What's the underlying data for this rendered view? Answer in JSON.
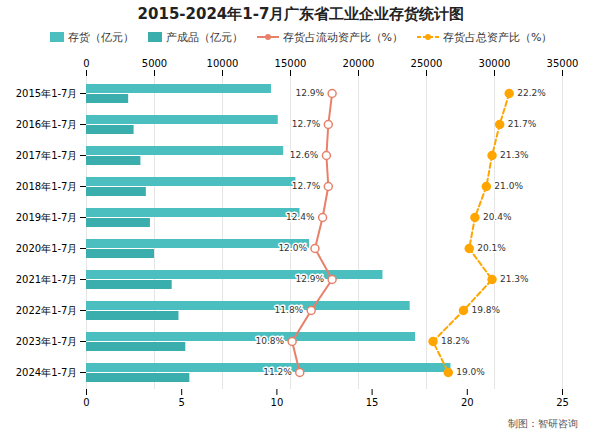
{
  "chart_data": {
    "type": "bar",
    "orientation": "horizontal",
    "title": "2015-2024年1-7月广东省工业企业存货统计图",
    "categories": [
      "2015年1-7月",
      "2016年1-7月",
      "2017年1-7月",
      "2018年1-7月",
      "2019年1-7月",
      "2020年1-7月",
      "2021年1-7月",
      "2022年1-7月",
      "2023年1-7月",
      "2024年1-7月"
    ],
    "series": [
      {
        "name": "存货（亿元）",
        "type": "bar",
        "color": "#4BBFBF",
        "values": [
          13600,
          14100,
          14500,
          15400,
          15700,
          16400,
          21800,
          23800,
          24200,
          26800
        ]
      },
      {
        "name": "产成品（亿元）",
        "type": "bar",
        "color": "#3AADAD",
        "values": [
          3100,
          3500,
          4000,
          4400,
          4700,
          5000,
          6300,
          6800,
          7300,
          7600
        ]
      },
      {
        "name": "存货占流动资产比（%）",
        "type": "line",
        "axis": "x2",
        "color": "#E8806A",
        "marker": "circle",
        "data_labels": true,
        "values": [
          12.9,
          12.7,
          12.6,
          12.7,
          12.4,
          12.0,
          12.9,
          11.8,
          10.8,
          11.2
        ],
        "value_labels": [
          "12.9%",
          "12.7%",
          "12.6%",
          "12.7%",
          "12.4%",
          "12.0%",
          "12.9%",
          "11.8%",
          "10.8%",
          "11.2%"
        ]
      },
      {
        "name": "存货占总资产比（%）",
        "type": "line",
        "axis": "x2",
        "color": "#FFA500",
        "marker": "circle",
        "line_style": "dashed",
        "data_labels": true,
        "values": [
          22.2,
          21.7,
          21.3,
          21.0,
          20.4,
          20.1,
          21.3,
          19.8,
          18.2,
          19.0
        ],
        "value_labels": [
          "22.2%",
          "21.7%",
          "21.3%",
          "21.0%",
          "20.4%",
          "20.1%",
          "21.3%",
          "19.8%",
          "18.2%",
          "19.0%"
        ]
      }
    ],
    "xlim": [
      0,
      35000
    ],
    "xticks": [
      0,
      5000,
      10000,
      15000,
      20000,
      25000,
      30000,
      35000
    ],
    "x2lim": [
      0,
      25
    ],
    "x2ticks": [
      0,
      5,
      10,
      15,
      20,
      25
    ],
    "grid": true,
    "legend": "top",
    "annotations": [
      "制图：智研咨询"
    ]
  }
}
